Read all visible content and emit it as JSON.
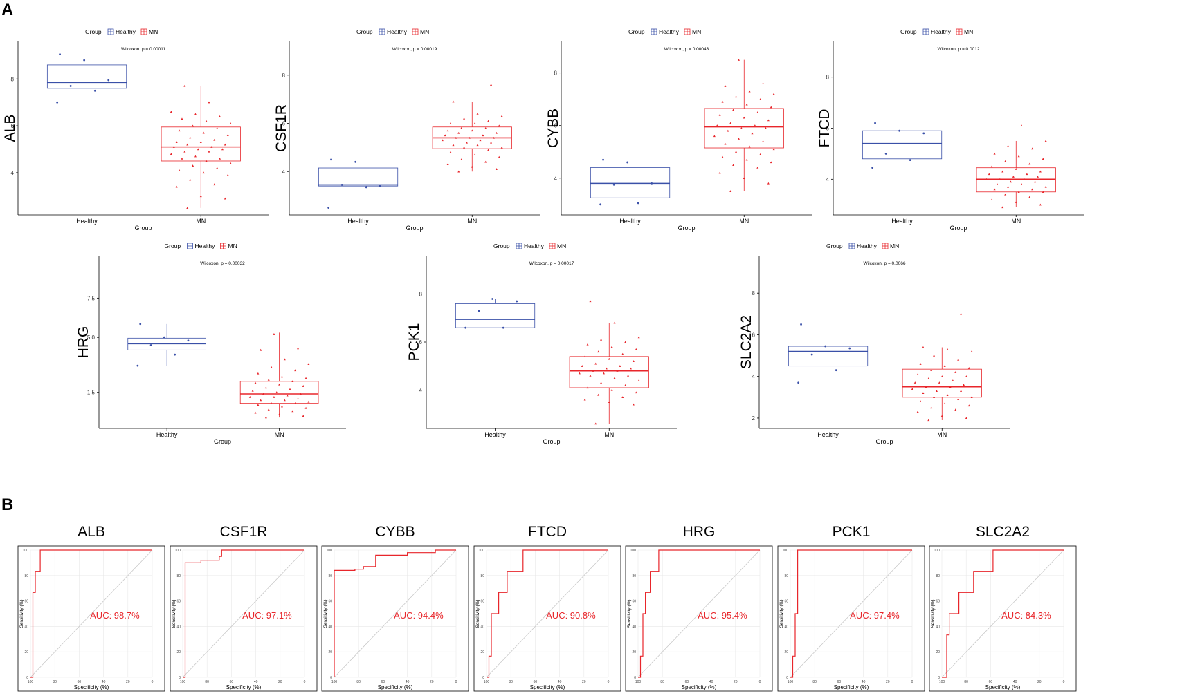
{
  "panel_labels": {
    "a": "A",
    "b": "B"
  },
  "legend": {
    "title": "Group",
    "healthy": "Healthy",
    "mn": "MN"
  },
  "colors": {
    "healthy": "#3a50a8",
    "mn": "#e8262b",
    "axis": "#000000",
    "roc_grid": "#e8e8e8",
    "diag": "#c8c8c8"
  },
  "chart_data": [
    {
      "type": "box",
      "gene": "ALB",
      "ylabel": "ALB",
      "xlabel": "Group",
      "categories": [
        "Healthy",
        "MN"
      ],
      "annotation": "Wilcoxon, p = 0.00011",
      "ylim": [
        2.2,
        9.6
      ],
      "yticks": [
        4,
        6,
        8
      ],
      "ytick_labels": [
        "4",
        "6",
        "8"
      ],
      "boxes": [
        {
          "group": "Healthy",
          "whisker_low": 7.0,
          "q1": 7.6,
          "median": 7.85,
          "q3": 8.6,
          "whisker_high": 9.05
        },
        {
          "group": "MN",
          "whisker_low": 2.5,
          "q1": 4.5,
          "median": 5.1,
          "q3": 5.95,
          "whisker_high": 7.7
        }
      ],
      "points": {
        "Healthy": [
          7.0,
          7.5,
          7.7,
          7.95,
          8.8,
          9.05
        ],
        "MN": [
          2.5,
          2.9,
          3.0,
          3.4,
          3.5,
          3.7,
          3.9,
          4.0,
          4.1,
          4.2,
          4.3,
          4.4,
          4.5,
          4.6,
          4.6,
          4.7,
          4.8,
          4.9,
          4.9,
          5.0,
          5.0,
          5.1,
          5.1,
          5.2,
          5.2,
          5.3,
          5.3,
          5.4,
          5.5,
          5.6,
          5.7,
          5.8,
          5.9,
          6.0,
          6.1,
          6.2,
          6.3,
          6.4,
          6.5,
          6.6,
          7.0,
          7.7
        ]
      }
    },
    {
      "type": "box",
      "gene": "CSF1R",
      "ylabel": "CSF1R",
      "xlabel": "Group",
      "categories": [
        "Healthy",
        "MN"
      ],
      "annotation": "Wilcoxon, p = 0.00019",
      "ylim": [
        2.2,
        9.4
      ],
      "yticks": [
        4,
        6,
        8
      ],
      "ytick_labels": [
        "4",
        "6",
        "8"
      ],
      "boxes": [
        {
          "group": "Healthy",
          "whisker_low": 2.5,
          "q1": 3.4,
          "median": 3.45,
          "q3": 4.15,
          "whisker_high": 4.5
        },
        {
          "group": "MN",
          "whisker_low": 4.0,
          "q1": 4.95,
          "median": 5.4,
          "q3": 5.85,
          "whisker_high": 6.9
        }
      ],
      "points": {
        "Healthy": [
          2.5,
          3.35,
          3.45,
          3.4,
          4.4,
          4.5
        ],
        "MN": [
          4.0,
          4.1,
          4.2,
          4.3,
          4.4,
          4.5,
          4.6,
          4.7,
          4.8,
          4.9,
          5.0,
          5.0,
          5.1,
          5.1,
          5.2,
          5.2,
          5.3,
          5.3,
          5.4,
          5.4,
          5.4,
          5.5,
          5.5,
          5.6,
          5.6,
          5.7,
          5.7,
          5.8,
          5.8,
          5.9,
          6.0,
          6.0,
          6.1,
          6.2,
          6.3,
          6.4,
          6.9,
          7.6
        ]
      }
    },
    {
      "type": "box",
      "gene": "CYBB",
      "ylabel": "CYBB",
      "xlabel": "Group",
      "categories": [
        "Healthy",
        "MN"
      ],
      "annotation": "Wilcoxon, p = 0.00043",
      "ylim": [
        2.6,
        9.2
      ],
      "yticks": [
        4,
        6,
        8
      ],
      "ytick_labels": [
        "4",
        "6",
        "8"
      ],
      "boxes": [
        {
          "group": "Healthy",
          "whisker_low": 3.0,
          "q1": 3.25,
          "median": 3.8,
          "q3": 4.4,
          "whisker_high": 4.7
        },
        {
          "group": "MN",
          "whisker_low": 3.5,
          "q1": 5.15,
          "median": 5.95,
          "q3": 6.65,
          "whisker_high": 8.5
        }
      ],
      "points": {
        "Healthy": [
          3.0,
          3.05,
          3.75,
          3.8,
          4.6,
          4.7
        ],
        "MN": [
          3.5,
          3.8,
          4.0,
          4.2,
          4.4,
          4.5,
          4.6,
          4.7,
          4.8,
          4.9,
          5.0,
          5.1,
          5.2,
          5.3,
          5.4,
          5.5,
          5.6,
          5.7,
          5.8,
          5.9,
          5.9,
          6.0,
          6.0,
          6.1,
          6.2,
          6.3,
          6.4,
          6.5,
          6.6,
          6.7,
          6.8,
          6.9,
          7.0,
          7.1,
          7.2,
          7.3,
          7.5,
          7.6,
          8.5
        ]
      }
    },
    {
      "type": "box",
      "gene": "FTCD",
      "ylabel": "FTCD",
      "xlabel": "Group",
      "categories": [
        "Healthy",
        "MN"
      ],
      "annotation": "Wilcoxon, p = 0.0012",
      "ylim": [
        2.6,
        9.4
      ],
      "yticks": [
        4,
        6,
        8
      ],
      "ytick_labels": [
        "4",
        "6",
        "8"
      ],
      "boxes": [
        {
          "group": "Healthy",
          "whisker_low": 4.5,
          "q1": 4.8,
          "median": 5.4,
          "q3": 5.9,
          "whisker_high": 6.2
        },
        {
          "group": "MN",
          "whisker_low": 2.9,
          "q1": 3.5,
          "median": 4.0,
          "q3": 4.45,
          "whisker_high": 5.5
        }
      ],
      "points": {
        "Healthy": [
          4.45,
          4.75,
          5.0,
          5.8,
          5.9,
          6.2
        ],
        "MN": [
          2.9,
          3.0,
          3.1,
          3.2,
          3.3,
          3.4,
          3.5,
          3.5,
          3.6,
          3.6,
          3.7,
          3.7,
          3.8,
          3.8,
          3.9,
          3.9,
          4.0,
          4.0,
          4.0,
          4.1,
          4.1,
          4.2,
          4.2,
          4.3,
          4.3,
          4.4,
          4.5,
          4.6,
          4.7,
          4.8,
          4.9,
          5.0,
          5.2,
          5.3,
          5.5,
          6.1
        ]
      }
    },
    {
      "type": "box",
      "gene": "HRG",
      "ylabel": "HRG",
      "xlabel": "Group",
      "categories": [
        "Healthy",
        "MN"
      ],
      "annotation": "Wilcoxon, p = 0.00032",
      "ylim": [
        -0.8,
        10.2
      ],
      "yticks": [
        1.5,
        5.0,
        7.5
      ],
      "ytick_labels": [
        "1.5",
        "5.0",
        "7.5"
      ],
      "boxes": [
        {
          "group": "Healthy",
          "whisker_low": 3.2,
          "q1": 4.2,
          "median": 4.6,
          "q3": 4.95,
          "whisker_high": 5.85
        },
        {
          "group": "MN",
          "whisker_low": -0.1,
          "q1": 0.8,
          "median": 1.4,
          "q3": 2.2,
          "whisker_high": 5.3
        }
      ],
      "points": {
        "Healthy": [
          3.2,
          3.9,
          4.5,
          4.8,
          5.0,
          5.85
        ],
        "MN": [
          -0.1,
          0.0,
          0.1,
          0.2,
          0.3,
          0.4,
          0.5,
          0.6,
          0.7,
          0.8,
          0.8,
          0.9,
          1.0,
          1.0,
          1.1,
          1.2,
          1.2,
          1.3,
          1.4,
          1.4,
          1.5,
          1.6,
          1.7,
          1.8,
          1.9,
          2.0,
          2.1,
          2.2,
          2.3,
          2.4,
          2.5,
          2.7,
          2.9,
          3.1,
          3.3,
          3.6,
          4.2,
          4.3,
          5.2
        ]
      }
    },
    {
      "type": "box",
      "gene": "PCK1",
      "ylabel": "PCK1",
      "xlabel": "Group",
      "categories": [
        "Healthy",
        "MN"
      ],
      "annotation": "Wilcoxon, p = 0.00017",
      "ylim": [
        2.4,
        9.6
      ],
      "yticks": [
        4,
        6,
        8
      ],
      "ytick_labels": [
        "4",
        "6",
        "8"
      ],
      "boxes": [
        {
          "group": "Healthy",
          "whisker_low": 6.6,
          "q1": 6.6,
          "median": 6.95,
          "q3": 7.6,
          "whisker_high": 7.8
        },
        {
          "group": "MN",
          "whisker_low": 2.6,
          "q1": 4.1,
          "median": 4.8,
          "q3": 5.4,
          "whisker_high": 6.8
        }
      ],
      "points": {
        "Healthy": [
          6.6,
          6.6,
          7.3,
          7.7,
          7.8
        ],
        "MN": [
          2.6,
          3.4,
          3.5,
          3.6,
          3.7,
          3.8,
          3.9,
          4.0,
          4.1,
          4.2,
          4.3,
          4.4,
          4.5,
          4.6,
          4.6,
          4.7,
          4.7,
          4.8,
          4.8,
          4.9,
          4.9,
          5.0,
          5.0,
          5.1,
          5.2,
          5.3,
          5.4,
          5.5,
          5.6,
          5.7,
          5.8,
          5.9,
          6.0,
          6.1,
          6.2,
          6.8,
          7.7
        ]
      }
    },
    {
      "type": "box",
      "gene": "SLC2A2",
      "ylabel": "SLC2A2",
      "xlabel": "Group",
      "categories": [
        "Healthy",
        "MN"
      ],
      "annotation": "Wilcoxon, p = 0.0066",
      "ylim": [
        1.5,
        9.8
      ],
      "yticks": [
        2,
        4,
        6,
        8
      ],
      "ytick_labels": [
        "2",
        "4",
        "6",
        "8"
      ],
      "boxes": [
        {
          "group": "Healthy",
          "whisker_low": 3.7,
          "q1": 4.5,
          "median": 5.2,
          "q3": 5.45,
          "whisker_high": 6.5
        },
        {
          "group": "MN",
          "whisker_low": 1.9,
          "q1": 3.0,
          "median": 3.5,
          "q3": 4.35,
          "whisker_high": 5.4
        }
      ],
      "points": {
        "Healthy": [
          3.7,
          4.3,
          5.05,
          5.35,
          5.45,
          6.5
        ],
        "MN": [
          1.9,
          2.0,
          2.1,
          2.3,
          2.4,
          2.5,
          2.6,
          2.7,
          2.8,
          2.9,
          3.0,
          3.0,
          3.1,
          3.2,
          3.3,
          3.3,
          3.4,
          3.5,
          3.5,
          3.6,
          3.7,
          3.7,
          3.8,
          3.9,
          4.0,
          4.0,
          4.1,
          4.2,
          4.3,
          4.4,
          4.5,
          4.6,
          4.8,
          5.0,
          5.2,
          5.3,
          5.4,
          7.0
        ]
      }
    },
    {
      "type": "roc",
      "title": "ALB",
      "auc_label": "AUC: 98.7%",
      "xlabel": "Specificity (%)",
      "ylabel": "Sensitivity (%)",
      "xticks": [
        100,
        80,
        60,
        40,
        20,
        0
      ],
      "yticks": [
        0,
        20,
        40,
        60,
        80,
        100
      ],
      "curve": [
        [
          100,
          0
        ],
        [
          98,
          0
        ],
        [
          98,
          66.7
        ],
        [
          96,
          66.7
        ],
        [
          96,
          83.3
        ],
        [
          92,
          83.3
        ],
        [
          92,
          100
        ],
        [
          0,
          100
        ]
      ]
    },
    {
      "type": "roc",
      "title": "CSF1R",
      "auc_label": "AUC: 97.1%",
      "xlabel": "Specificity (%)",
      "ylabel": "Sensitivity (%)",
      "xticks": [
        100,
        80,
        60,
        40,
        20,
        0
      ],
      "yticks": [
        0,
        20,
        40,
        60,
        80,
        100
      ],
      "curve": [
        [
          100,
          0
        ],
        [
          98,
          0
        ],
        [
          98,
          90
        ],
        [
          85,
          90
        ],
        [
          85,
          92
        ],
        [
          70,
          92
        ],
        [
          70,
          95
        ],
        [
          68,
          95
        ],
        [
          68,
          100
        ],
        [
          0,
          100
        ]
      ]
    },
    {
      "type": "roc",
      "title": "CYBB",
      "auc_label": "AUC: 94.4%",
      "xlabel": "Specificity (%)",
      "ylabel": "Sensitivity (%)",
      "xticks": [
        100,
        80,
        60,
        40,
        20,
        0
      ],
      "yticks": [
        0,
        20,
        40,
        60,
        80,
        100
      ],
      "curve": [
        [
          100,
          0
        ],
        [
          100,
          84
        ],
        [
          83,
          84
        ],
        [
          83,
          85
        ],
        [
          76,
          85
        ],
        [
          76,
          87
        ],
        [
          66,
          87
        ],
        [
          66,
          96
        ],
        [
          40,
          96
        ],
        [
          40,
          98
        ],
        [
          17,
          98
        ],
        [
          17,
          100
        ],
        [
          0,
          100
        ]
      ]
    },
    {
      "type": "roc",
      "title": "FTCD",
      "auc_label": "AUC: 90.8%",
      "xlabel": "Specificity (%)",
      "ylabel": "Sensitivity (%)",
      "xticks": [
        100,
        80,
        60,
        40,
        20,
        0
      ],
      "yticks": [
        0,
        20,
        40,
        60,
        80,
        100
      ],
      "curve": [
        [
          100,
          0
        ],
        [
          98,
          0
        ],
        [
          98,
          16.7
        ],
        [
          96,
          16.7
        ],
        [
          96,
          50
        ],
        [
          90,
          50
        ],
        [
          90,
          66.7
        ],
        [
          83,
          66.7
        ],
        [
          83,
          83.3
        ],
        [
          70,
          83.3
        ],
        [
          70,
          100
        ],
        [
          0,
          100
        ]
      ]
    },
    {
      "type": "roc",
      "title": "HRG",
      "auc_label": "AUC: 95.4%",
      "xlabel": "Specificity (%)",
      "ylabel": "Sensitivity (%)",
      "xticks": [
        100,
        80,
        60,
        40,
        20,
        0
      ],
      "yticks": [
        0,
        20,
        40,
        60,
        80,
        100
      ],
      "curve": [
        [
          100,
          0
        ],
        [
          98,
          0
        ],
        [
          98,
          16.7
        ],
        [
          96,
          16.7
        ],
        [
          96,
          50
        ],
        [
          94,
          50
        ],
        [
          94,
          66.7
        ],
        [
          90,
          66.7
        ],
        [
          90,
          83.3
        ],
        [
          83,
          83.3
        ],
        [
          83,
          100
        ],
        [
          0,
          100
        ]
      ]
    },
    {
      "type": "roc",
      "title": "PCK1",
      "auc_label": "AUC: 97.4%",
      "xlabel": "Specificity (%)",
      "ylabel": "Sensitivity (%)",
      "xticks": [
        100,
        80,
        60,
        40,
        20,
        0
      ],
      "yticks": [
        0,
        20,
        40,
        60,
        80,
        100
      ],
      "curve": [
        [
          100,
          0
        ],
        [
          98,
          0
        ],
        [
          98,
          16.7
        ],
        [
          96,
          16.7
        ],
        [
          96,
          50
        ],
        [
          94,
          50
        ],
        [
          94,
          100
        ],
        [
          0,
          100
        ]
      ]
    },
    {
      "type": "roc",
      "title": "SLC2A2",
      "auc_label": "AUC: 84.3%",
      "xlabel": "Specificity (%)",
      "ylabel": "Sensitivity (%)",
      "xticks": [
        100,
        80,
        60,
        40,
        20,
        0
      ],
      "yticks": [
        0,
        20,
        40,
        60,
        80,
        100
      ],
      "curve": [
        [
          100,
          0
        ],
        [
          96,
          0
        ],
        [
          96,
          33.3
        ],
        [
          94,
          33.3
        ],
        [
          94,
          50
        ],
        [
          86,
          50
        ],
        [
          86,
          66.7
        ],
        [
          74,
          66.7
        ],
        [
          74,
          83.3
        ],
        [
          58,
          83.3
        ],
        [
          58,
          100
        ],
        [
          0,
          100
        ]
      ]
    }
  ]
}
